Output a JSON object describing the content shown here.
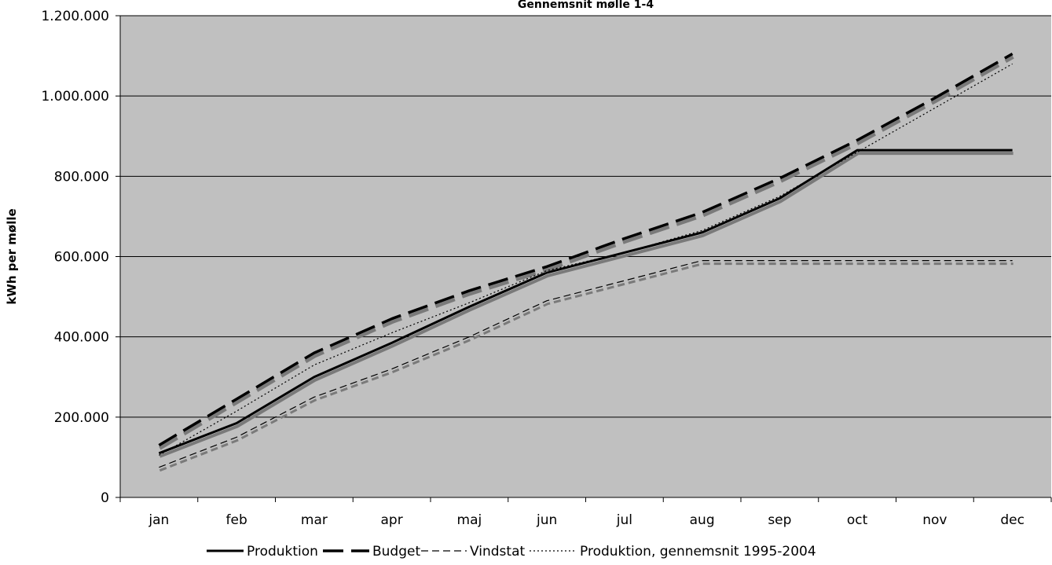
{
  "chart_data": {
    "type": "line",
    "title": "Gennemsnit mølle 1-4",
    "xlabel": "",
    "ylabel": "kWh per mølle",
    "ylim": [
      0,
      1200000
    ],
    "yticks": [
      0,
      200000,
      400000,
      600000,
      800000,
      1000000,
      1200000
    ],
    "ytick_labels": [
      "0",
      "200.000",
      "400.000",
      "600.000",
      "800.000",
      "1.000.000",
      "1.200.000"
    ],
    "categories": [
      "jan",
      "feb",
      "mar",
      "apr",
      "maj",
      "jun",
      "jul",
      "aug",
      "sep",
      "oct",
      "nov",
      "dec"
    ],
    "grid": true,
    "legend": "bottom",
    "plot_background": "#c0c0c0",
    "series": [
      {
        "name": "Produktion",
        "style": "solid-thick",
        "values": [
          110000,
          185000,
          300000,
          385000,
          475000,
          560000,
          610000,
          660000,
          745000,
          865000,
          865000,
          865000
        ]
      },
      {
        "name": "Budget",
        "style": "long-dash-thick",
        "values": [
          130000,
          245000,
          360000,
          445000,
          515000,
          575000,
          645000,
          710000,
          795000,
          890000,
          995000,
          1105000
        ]
      },
      {
        "name": "Vindstat",
        "style": "dash-thin",
        "values": [
          75000,
          150000,
          250000,
          320000,
          400000,
          490000,
          540000,
          590000,
          590000,
          590000,
          590000,
          590000
        ]
      },
      {
        "name": "Produktion, gennemsnit 1995-2004",
        "style": "dot-thin",
        "values": [
          105000,
          215000,
          330000,
          410000,
          485000,
          565000,
          610000,
          665000,
          750000,
          860000,
          970000,
          1080000
        ]
      }
    ]
  }
}
